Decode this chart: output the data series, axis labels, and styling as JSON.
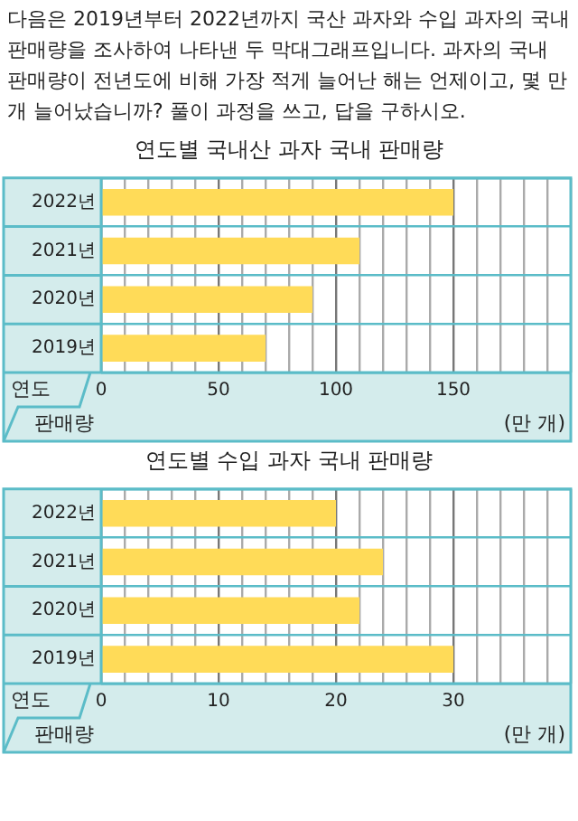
{
  "chart_data": [
    {
      "type": "bar",
      "orientation": "horizontal",
      "subtitle": "다음은 2019년부터 2022년까지 국산 과자와 수입 과자의 국내 판매량을 조사하여 나타낸 두 막대그래프입니다. 과자의 국내 판매량이 전년도에 비해 가장 적게 늘어난 해는 언제이고, 몇 만 개 늘어났습니까? 풀이 과정을 쓰고, 답을 구하시오.",
      "title": "연도별 국내산 과자 국내 판매량",
      "ylabel": "연도",
      "xlabel": "판매량",
      "annotations": [
        "(만 개)"
      ],
      "categories": [
        "2022년",
        "2021년",
        "2020년",
        "2019년"
      ],
      "values": [
        150,
        110,
        90,
        70
      ],
      "color": "#ffdb58",
      "grid": true,
      "legend": false,
      "xlim": [
        0,
        200
      ],
      "xticks": [
        0,
        {
          "value": 10,
          "label": null
        },
        {
          "value": 20,
          "label": null
        },
        {
          "value": 30,
          "label": null
        },
        {
          "value": 40,
          "label": null
        },
        50,
        {
          "value": 60,
          "label": null
        },
        {
          "value": 70,
          "label": null
        },
        {
          "value": 80,
          "label": null
        },
        {
          "value": 90,
          "label": null
        },
        100,
        {
          "value": 110,
          "label": null
        },
        {
          "value": 120,
          "label": null
        },
        {
          "value": 130,
          "label": null
        },
        {
          "value": 140,
          "label": null
        },
        150,
        {
          "value": 160,
          "label": null
        },
        {
          "value": 170,
          "label": null
        },
        {
          "value": 180,
          "label": null
        },
        {
          "value": 190,
          "label": null
        },
        {
          "value": 200,
          "label": null
        }
      ]
    },
    {
      "type": "bar",
      "orientation": "horizontal",
      "title": "연도별 수입 과자 국내 판매량",
      "ylabel": "연도",
      "xlabel": "판매량",
      "annotations": [
        "(만 개)"
      ],
      "categories": [
        "2022년",
        "2021년",
        "2020년",
        "2019년"
      ],
      "values": [
        20,
        24,
        22,
        30
      ],
      "color": "#ffdb58",
      "grid": true,
      "legend": false,
      "xlim": [
        0,
        40
      ],
      "xticks": [
        0,
        {
          "value": 2,
          "label": null
        },
        {
          "value": 4,
          "label": null
        },
        {
          "value": 6,
          "label": null
        },
        {
          "value": 8,
          "label": null
        },
        10,
        {
          "value": 12,
          "label": null
        },
        {
          "value": 14,
          "label": null
        },
        {
          "value": 16,
          "label": null
        },
        {
          "value": 18,
          "label": null
        },
        20,
        {
          "value": 22,
          "label": null
        },
        {
          "value": 24,
          "label": null
        },
        {
          "value": 26,
          "label": null
        },
        {
          "value": 28,
          "label": null
        },
        30,
        {
          "value": 32,
          "label": null
        },
        {
          "value": 34,
          "label": null
        },
        {
          "value": 36,
          "label": null
        },
        {
          "value": 38,
          "label": null
        },
        {
          "value": 40,
          "label": null
        }
      ]
    }
  ]
}
